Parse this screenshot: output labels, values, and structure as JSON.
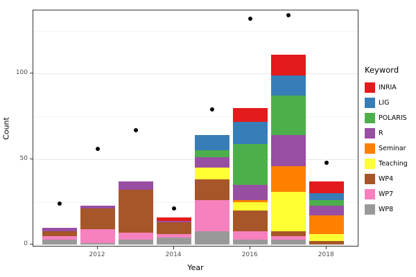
{
  "chart_data": {
    "type": "bar",
    "stacked": true,
    "title": "",
    "xlabel": "Year",
    "ylabel": "Count",
    "categories": [
      2011,
      2012,
      2013,
      2014,
      2015,
      2016,
      2017,
      2018
    ],
    "series": [
      {
        "name": "INRIA",
        "color": "#E41A1C",
        "values": [
          0,
          0,
          0,
          2,
          0,
          8,
          12,
          7
        ]
      },
      {
        "name": "LIG",
        "color": "#377EB8",
        "values": [
          0,
          0,
          0,
          0,
          9,
          13,
          12,
          4
        ]
      },
      {
        "name": "POLARIS",
        "color": "#4DAF4A",
        "values": [
          0,
          0,
          0,
          0,
          4,
          24,
          23,
          3
        ]
      },
      {
        "name": "R",
        "color": "#984EA3",
        "values": [
          2,
          2,
          5,
          1,
          6,
          9,
          18,
          6
        ]
      },
      {
        "name": "Seminar",
        "color": "#FF7F00",
        "values": [
          0,
          0,
          0,
          0,
          0,
          1,
          15,
          11
        ]
      },
      {
        "name": "Teaching",
        "color": "#FFFF33",
        "values": [
          0,
          0,
          0,
          0,
          7,
          5,
          23,
          4
        ]
      },
      {
        "name": "WP4",
        "color": "#A65628",
        "values": [
          3,
          12,
          25,
          7,
          12,
          12,
          3,
          2
        ]
      },
      {
        "name": "WP7",
        "color": "#F781BF",
        "values": [
          2,
          8,
          4,
          2,
          18,
          5,
          2,
          0
        ]
      },
      {
        "name": "WP8",
        "color": "#999999",
        "values": [
          3,
          1,
          3,
          4,
          8,
          3,
          3,
          0
        ]
      }
    ],
    "stack_order_bottom_to_top": [
      "WP8",
      "WP7",
      "WP4",
      "Teaching",
      "Seminar",
      "R",
      "POLARIS",
      "LIG",
      "INRIA"
    ],
    "point_overlay": {
      "shape": "circle",
      "color": "#000000",
      "values": [
        24,
        56,
        67,
        21,
        79,
        132,
        134,
        48
      ]
    },
    "x_ticks": [
      2012,
      2014,
      2016,
      2018
    ],
    "y_ticks": [
      0,
      50,
      100
    ],
    "y_minor_ticks": [
      25,
      75,
      125
    ],
    "xlim": [
      2010.31,
      2018.85
    ],
    "ylim": [
      -1.5,
      137
    ],
    "bar_width_years": 0.9,
    "grid": true,
    "legend": {
      "title": "Keyword",
      "position": "right"
    }
  }
}
